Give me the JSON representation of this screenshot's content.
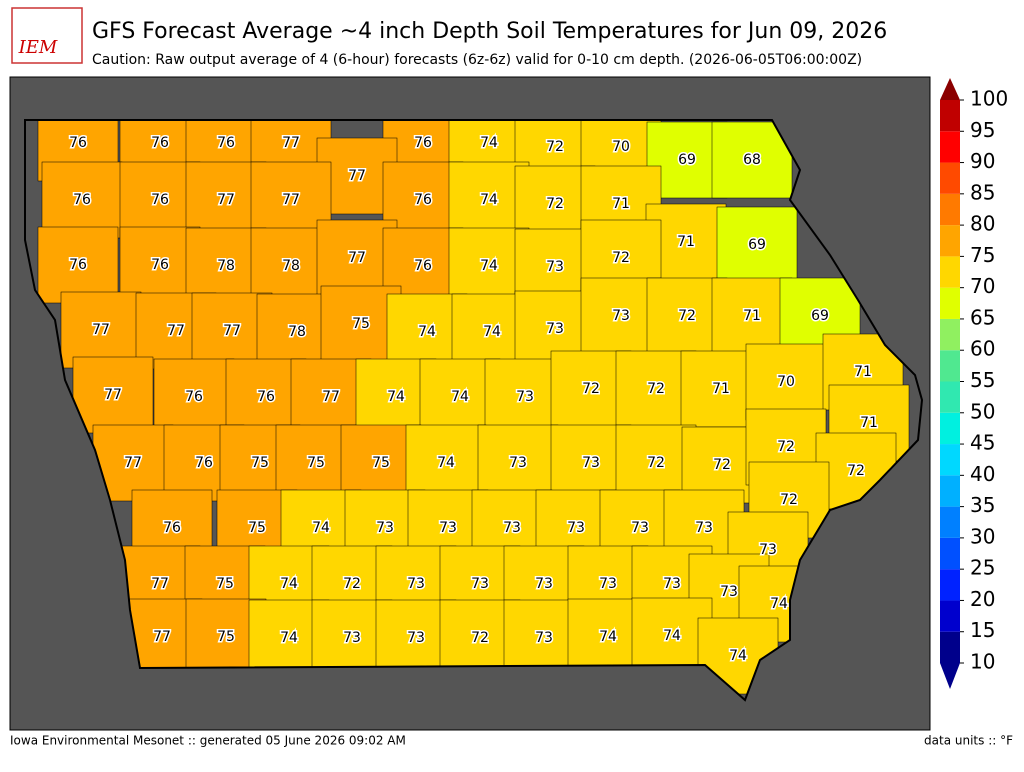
{
  "logo": "IEM",
  "title": "GFS Forecast Average ~4 inch Depth Soil Temperatures for Jun 09, 2026",
  "subtitle": "Caution: Raw output average of 4 (6-hour) forecasts (6z-6z) valid for 0-10 cm depth. (2026-06-05T06:00:00Z)",
  "footer_left": "Iowa Environmental Mesonet :: generated 05 June 2026 09:02 AM",
  "footer_right": "data units :: °F",
  "counties": {
    "values": [
      76,
      76,
      76,
      77,
      76,
      74,
      72,
      70,
      69,
      68,
      77,
      76,
      76,
      77,
      77,
      76,
      74,
      72,
      71,
      71,
      69,
      76,
      76,
      78,
      78,
      77,
      76,
      74,
      73,
      72,
      77,
      77,
      77,
      78,
      75,
      74,
      74,
      73,
      73,
      72,
      71,
      69,
      77,
      76,
      76,
      77,
      74,
      74,
      73,
      72,
      72,
      71,
      70,
      71,
      71,
      77,
      76,
      75,
      75,
      75,
      74,
      73,
      73,
      72,
      72,
      72,
      72,
      76,
      75,
      74,
      73,
      73,
      73,
      73,
      73,
      73,
      72,
      73,
      77,
      75,
      74,
      72,
      73,
      73,
      73,
      73,
      73,
      73,
      74,
      77,
      75,
      74,
      73,
      73,
      72,
      73,
      74,
      74,
      74
    ]
  },
  "colorbar": {
    "levels": [
      10,
      15,
      20,
      25,
      30,
      35,
      40,
      45,
      50,
      55,
      60,
      65,
      70,
      75,
      80,
      85,
      90,
      95,
      100
    ],
    "colors": [
      "#00008b",
      "#0000cd",
      "#0022ff",
      "#0050ff",
      "#0080ff",
      "#00b0ff",
      "#00d8ff",
      "#00f0e0",
      "#30e8b0",
      "#50e890",
      "#90f060",
      "#e0ff00",
      "#ffd700",
      "#ffa500",
      "#ff7a00",
      "#ff4a00",
      "#ff0000",
      "#c00000"
    ],
    "under_color": "#00008b",
    "over_color": "#8b0000"
  }
}
